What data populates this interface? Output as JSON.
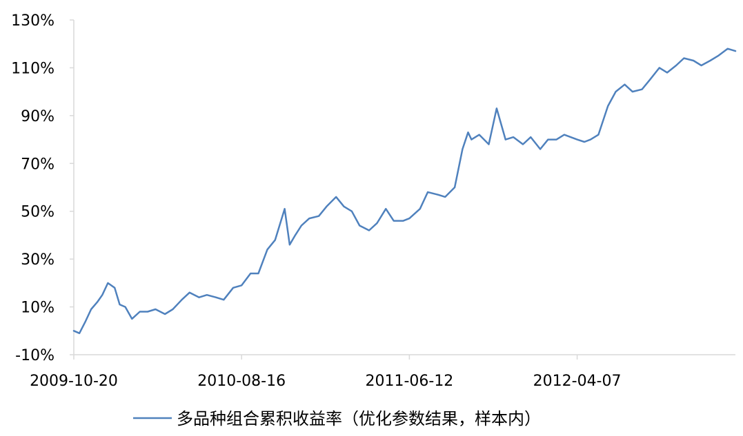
{
  "chart_data": {
    "type": "line",
    "title": "",
    "xlabel": "",
    "ylabel": "",
    "ylim": [
      -10,
      130
    ],
    "y_ticks": [
      "-10%",
      "10%",
      "30%",
      "50%",
      "70%",
      "90%",
      "110%",
      "130%"
    ],
    "y_tick_values": [
      -10,
      10,
      30,
      50,
      70,
      90,
      110,
      130
    ],
    "x_tick_labels": [
      "2009-10-20",
      "2010-08-16",
      "2011-06-12",
      "2012-04-07"
    ],
    "x_range": [
      "2009-10-20",
      "2013-01-15"
    ],
    "grid": false,
    "legend_position": "bottom",
    "line_color": "#4f81bd",
    "series": [
      {
        "name": "多品种组合累积收益率（优化参数结果，样本内）",
        "x": [
          "2009-10-20",
          "2009-10-30",
          "2009-11-10",
          "2009-11-20",
          "2009-12-01",
          "2009-12-10",
          "2009-12-20",
          "2010-01-01",
          "2010-01-10",
          "2010-01-20",
          "2010-02-01",
          "2010-02-15",
          "2010-03-01",
          "2010-03-15",
          "2010-04-01",
          "2010-04-15",
          "2010-05-01",
          "2010-05-15",
          "2010-06-01",
          "2010-06-15",
          "2010-07-01",
          "2010-07-15",
          "2010-08-01",
          "2010-08-16",
          "2010-09-01",
          "2010-09-15",
          "2010-10-01",
          "2010-10-15",
          "2010-11-01",
          "2010-11-10",
          "2010-11-20",
          "2010-12-01",
          "2010-12-15",
          "2011-01-01",
          "2011-01-15",
          "2011-02-01",
          "2011-02-15",
          "2011-03-01",
          "2011-03-15",
          "2011-04-01",
          "2011-04-15",
          "2011-05-01",
          "2011-05-15",
          "2011-06-01",
          "2011-06-12",
          "2011-07-01",
          "2011-07-15",
          "2011-08-01",
          "2011-08-15",
          "2011-09-01",
          "2011-09-15",
          "2011-09-25",
          "2011-10-01",
          "2011-10-15",
          "2011-11-01",
          "2011-11-15",
          "2011-12-01",
          "2011-12-15",
          "2012-01-01",
          "2012-01-15",
          "2012-02-01",
          "2012-02-15",
          "2012-03-01",
          "2012-03-15",
          "2012-04-07",
          "2012-04-20",
          "2012-05-01",
          "2012-05-15",
          "2012-06-01",
          "2012-06-15",
          "2012-07-01",
          "2012-07-15",
          "2012-08-01",
          "2012-08-15",
          "2012-09-01",
          "2012-09-15",
          "2012-10-01",
          "2012-10-15",
          "2012-11-01",
          "2012-11-15",
          "2012-12-01",
          "2012-12-15",
          "2013-01-01",
          "2013-01-15"
        ],
        "values": [
          0,
          -1,
          4,
          9,
          12,
          15,
          20,
          18,
          11,
          10,
          5,
          8,
          8,
          9,
          7,
          9,
          13,
          16,
          14,
          15,
          14,
          13,
          18,
          19,
          24,
          24,
          34,
          38,
          51,
          36,
          40,
          44,
          47,
          48,
          52,
          56,
          52,
          50,
          44,
          42,
          45,
          51,
          46,
          46,
          47,
          51,
          58,
          57,
          56,
          60,
          76,
          83,
          80,
          82,
          78,
          93,
          80,
          81,
          78,
          81,
          76,
          80,
          80,
          82,
          80,
          79,
          80,
          82,
          94,
          100,
          103,
          100,
          101,
          105,
          110,
          108,
          111,
          114,
          113,
          111,
          113,
          115,
          118,
          117
        ]
      }
    ]
  },
  "legend": {
    "label": "多品种组合累积收益率（优化参数结果，样本内）"
  }
}
